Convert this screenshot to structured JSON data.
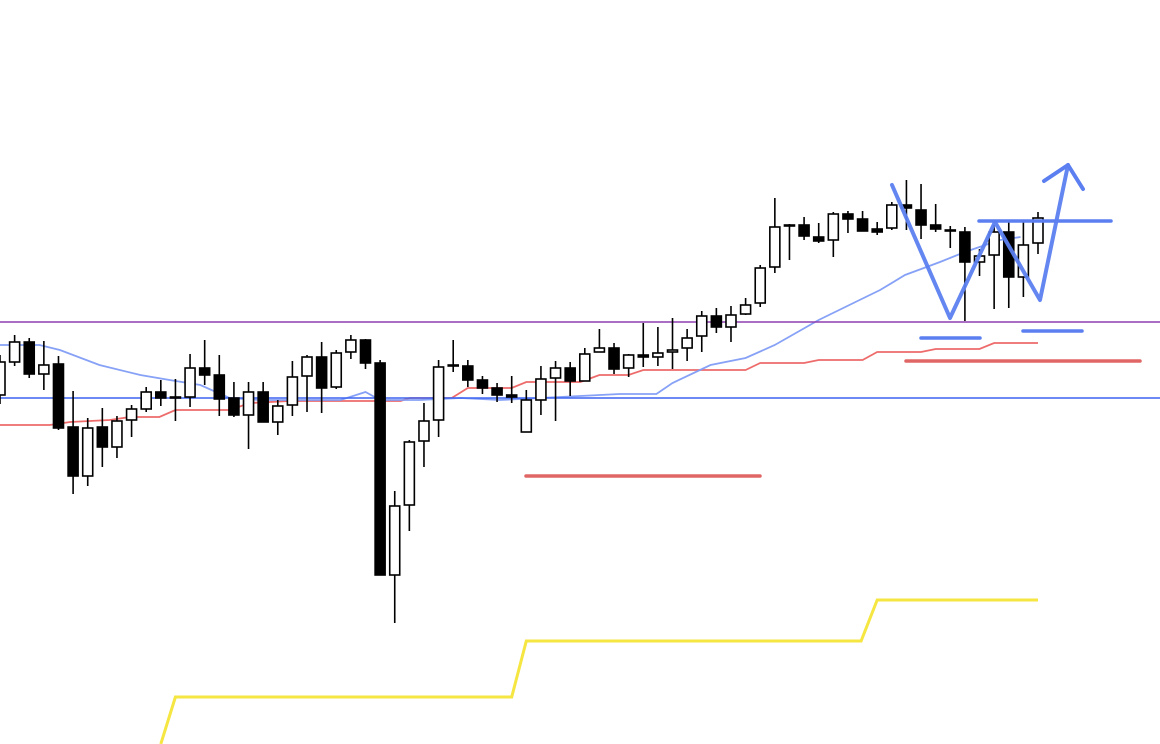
{
  "chart_data": {
    "type": "candlestick",
    "title": "",
    "xlabel": "",
    "ylabel": "",
    "grid": false,
    "colors": {
      "bull_body": "#ffffff",
      "bear_body": "#000000",
      "candle_outline": "#000000",
      "ma_fast": "#7f9cf5",
      "ma_red": "#ee6b6b",
      "ma_yellow": "#f5e642",
      "resistance_line": "#8e3fb0",
      "support_line": "#3d64f0",
      "annotation_blue": "#5b7ff0",
      "annotation_red": "#e06666"
    },
    "candles_ohlc": [
      [
        349,
        389,
        340,
        382
      ],
      [
        382,
        409,
        378,
        402
      ],
      [
        402,
        406,
        366,
        370
      ],
      [
        370,
        403,
        354,
        379
      ],
      [
        380,
        388,
        314,
        316
      ],
      [
        317,
        353,
        250,
        268
      ],
      [
        268,
        326,
        258,
        316
      ],
      [
        317,
        336,
        277,
        297
      ],
      [
        297,
        328,
        286,
        323
      ],
      [
        324,
        339,
        307,
        335
      ],
      [
        335,
        357,
        332,
        352
      ],
      [
        352,
        364,
        338,
        346
      ],
      [
        347,
        365,
        323,
        347
      ],
      [
        347,
        390,
        337,
        376
      ],
      [
        376,
        404,
        359,
        369
      ],
      [
        369,
        389,
        328,
        345
      ],
      [
        346,
        362,
        327,
        329
      ],
      [
        329,
        362,
        295,
        352
      ],
      [
        352,
        362,
        322,
        322
      ],
      [
        322,
        344,
        309,
        338
      ],
      [
        339,
        383,
        328,
        367
      ],
      [
        368,
        389,
        332,
        387
      ],
      [
        387,
        402,
        331,
        356
      ],
      [
        357,
        394,
        355,
        391
      ],
      [
        392,
        409,
        385,
        404
      ],
      [
        404,
        405,
        375,
        381
      ],
      [
        381,
        384,
        169,
        169
      ],
      [
        169,
        253,
        121,
        238
      ],
      [
        239,
        304,
        213,
        302
      ],
      [
        303,
        341,
        277,
        323
      ],
      [
        324,
        384,
        307,
        377
      ],
      [
        379,
        404,
        372,
        379
      ],
      [
        378,
        384,
        357,
        364
      ],
      [
        364,
        368,
        350,
        356
      ],
      [
        356,
        361,
        342,
        349
      ],
      [
        349,
        368,
        341,
        347
      ],
      [
        312,
        354,
        312,
        344
      ],
      [
        344,
        378,
        329,
        365
      ],
      [
        366,
        383,
        323,
        376
      ],
      [
        376,
        382,
        348,
        363
      ],
      [
        363,
        396,
        363,
        390
      ],
      [
        392,
        415,
        392,
        396
      ],
      [
        396,
        401,
        370,
        375
      ],
      [
        376,
        390,
        367,
        389
      ],
      [
        389,
        421,
        377,
        387
      ],
      [
        387,
        417,
        378,
        391
      ],
      [
        392,
        426,
        375,
        394
      ],
      [
        396,
        415,
        383,
        406
      ],
      [
        408,
        433,
        392,
        428
      ],
      [
        428,
        436,
        411,
        417
      ],
      [
        417,
        438,
        402,
        429
      ],
      [
        430,
        446,
        429,
        439
      ],
      [
        441,
        479,
        437,
        476
      ],
      [
        477,
        546,
        471,
        517
      ],
      [
        519,
        520,
        484,
        519
      ],
      [
        519,
        527,
        504,
        508
      ],
      [
        507,
        521,
        501,
        503
      ],
      [
        504,
        532,
        487,
        530
      ],
      [
        530,
        533,
        511,
        525
      ],
      [
        525,
        533,
        513,
        513
      ],
      [
        515,
        522,
        509,
        512
      ],
      [
        516,
        542,
        514,
        539
      ],
      [
        539,
        564,
        514,
        536
      ],
      [
        534,
        560,
        505,
        519
      ],
      [
        519,
        540,
        512,
        515
      ],
      [
        514,
        518,
        496,
        514
      ],
      [
        512,
        517,
        423,
        482
      ],
      [
        482,
        495,
        468,
        488
      ],
      [
        489,
        519,
        435,
        512
      ],
      [
        512,
        522,
        436,
        467
      ],
      [
        467,
        523,
        447,
        499
      ],
      [
        501,
        532,
        490,
        526
      ]
    ],
    "ma_fast_points": [
      [
        0,
        399
      ],
      [
        2.7,
        399
      ],
      [
        4.1,
        394
      ],
      [
        6.8,
        379
      ],
      [
        9.6,
        369
      ],
      [
        11.6,
        364
      ],
      [
        13.7,
        359
      ],
      [
        15.7,
        346
      ],
      [
        17.8,
        344
      ],
      [
        20.5,
        344
      ],
      [
        23.3,
        344
      ],
      [
        25,
        352
      ],
      [
        26,
        344
      ],
      [
        28.7,
        344
      ],
      [
        31.5,
        346
      ],
      [
        34.2,
        344
      ],
      [
        38.3,
        347
      ],
      [
        42.4,
        350
      ],
      [
        44.9,
        350
      ],
      [
        46,
        361
      ],
      [
        48.6,
        379
      ],
      [
        51,
        386
      ],
      [
        53,
        399
      ],
      [
        56,
        424
      ],
      [
        58.8,
        444
      ],
      [
        60.2,
        454
      ],
      [
        61.9,
        469
      ],
      [
        64.3,
        482
      ],
      [
        66,
        492
      ],
      [
        67.4,
        499
      ],
      [
        68.4,
        504
      ],
      [
        69.8,
        507
      ]
    ],
    "ma_red_points": [
      [
        0,
        319
      ],
      [
        3.4,
        319
      ],
      [
        4.8,
        322
      ],
      [
        7.5,
        324
      ],
      [
        8.9,
        327
      ],
      [
        10.9,
        327
      ],
      [
        12,
        334
      ],
      [
        15.7,
        334
      ],
      [
        17.1,
        341
      ],
      [
        19.8,
        343
      ],
      [
        27.4,
        343
      ],
      [
        28,
        346
      ],
      [
        30.9,
        346
      ],
      [
        32,
        356
      ],
      [
        35,
        356
      ],
      [
        36,
        362
      ],
      [
        39.7,
        362
      ],
      [
        41,
        369
      ],
      [
        43,
        369
      ],
      [
        44,
        374
      ],
      [
        51,
        374
      ],
      [
        52,
        381
      ],
      [
        55,
        381
      ],
      [
        56,
        384
      ],
      [
        59,
        384
      ],
      [
        60,
        392
      ],
      [
        63,
        392
      ],
      [
        64,
        395
      ],
      [
        67,
        395
      ],
      [
        68,
        401
      ],
      [
        71,
        401
      ]
    ],
    "ma_yellow_points": [
      [
        11,
        0
      ],
      [
        12,
        47
      ],
      [
        35,
        47
      ],
      [
        36,
        103
      ],
      [
        58.9,
        103
      ],
      [
        60,
        144
      ],
      [
        71,
        144
      ]
    ],
    "horizontal_levels": {
      "resistance": 422,
      "support": 346
    }
  }
}
